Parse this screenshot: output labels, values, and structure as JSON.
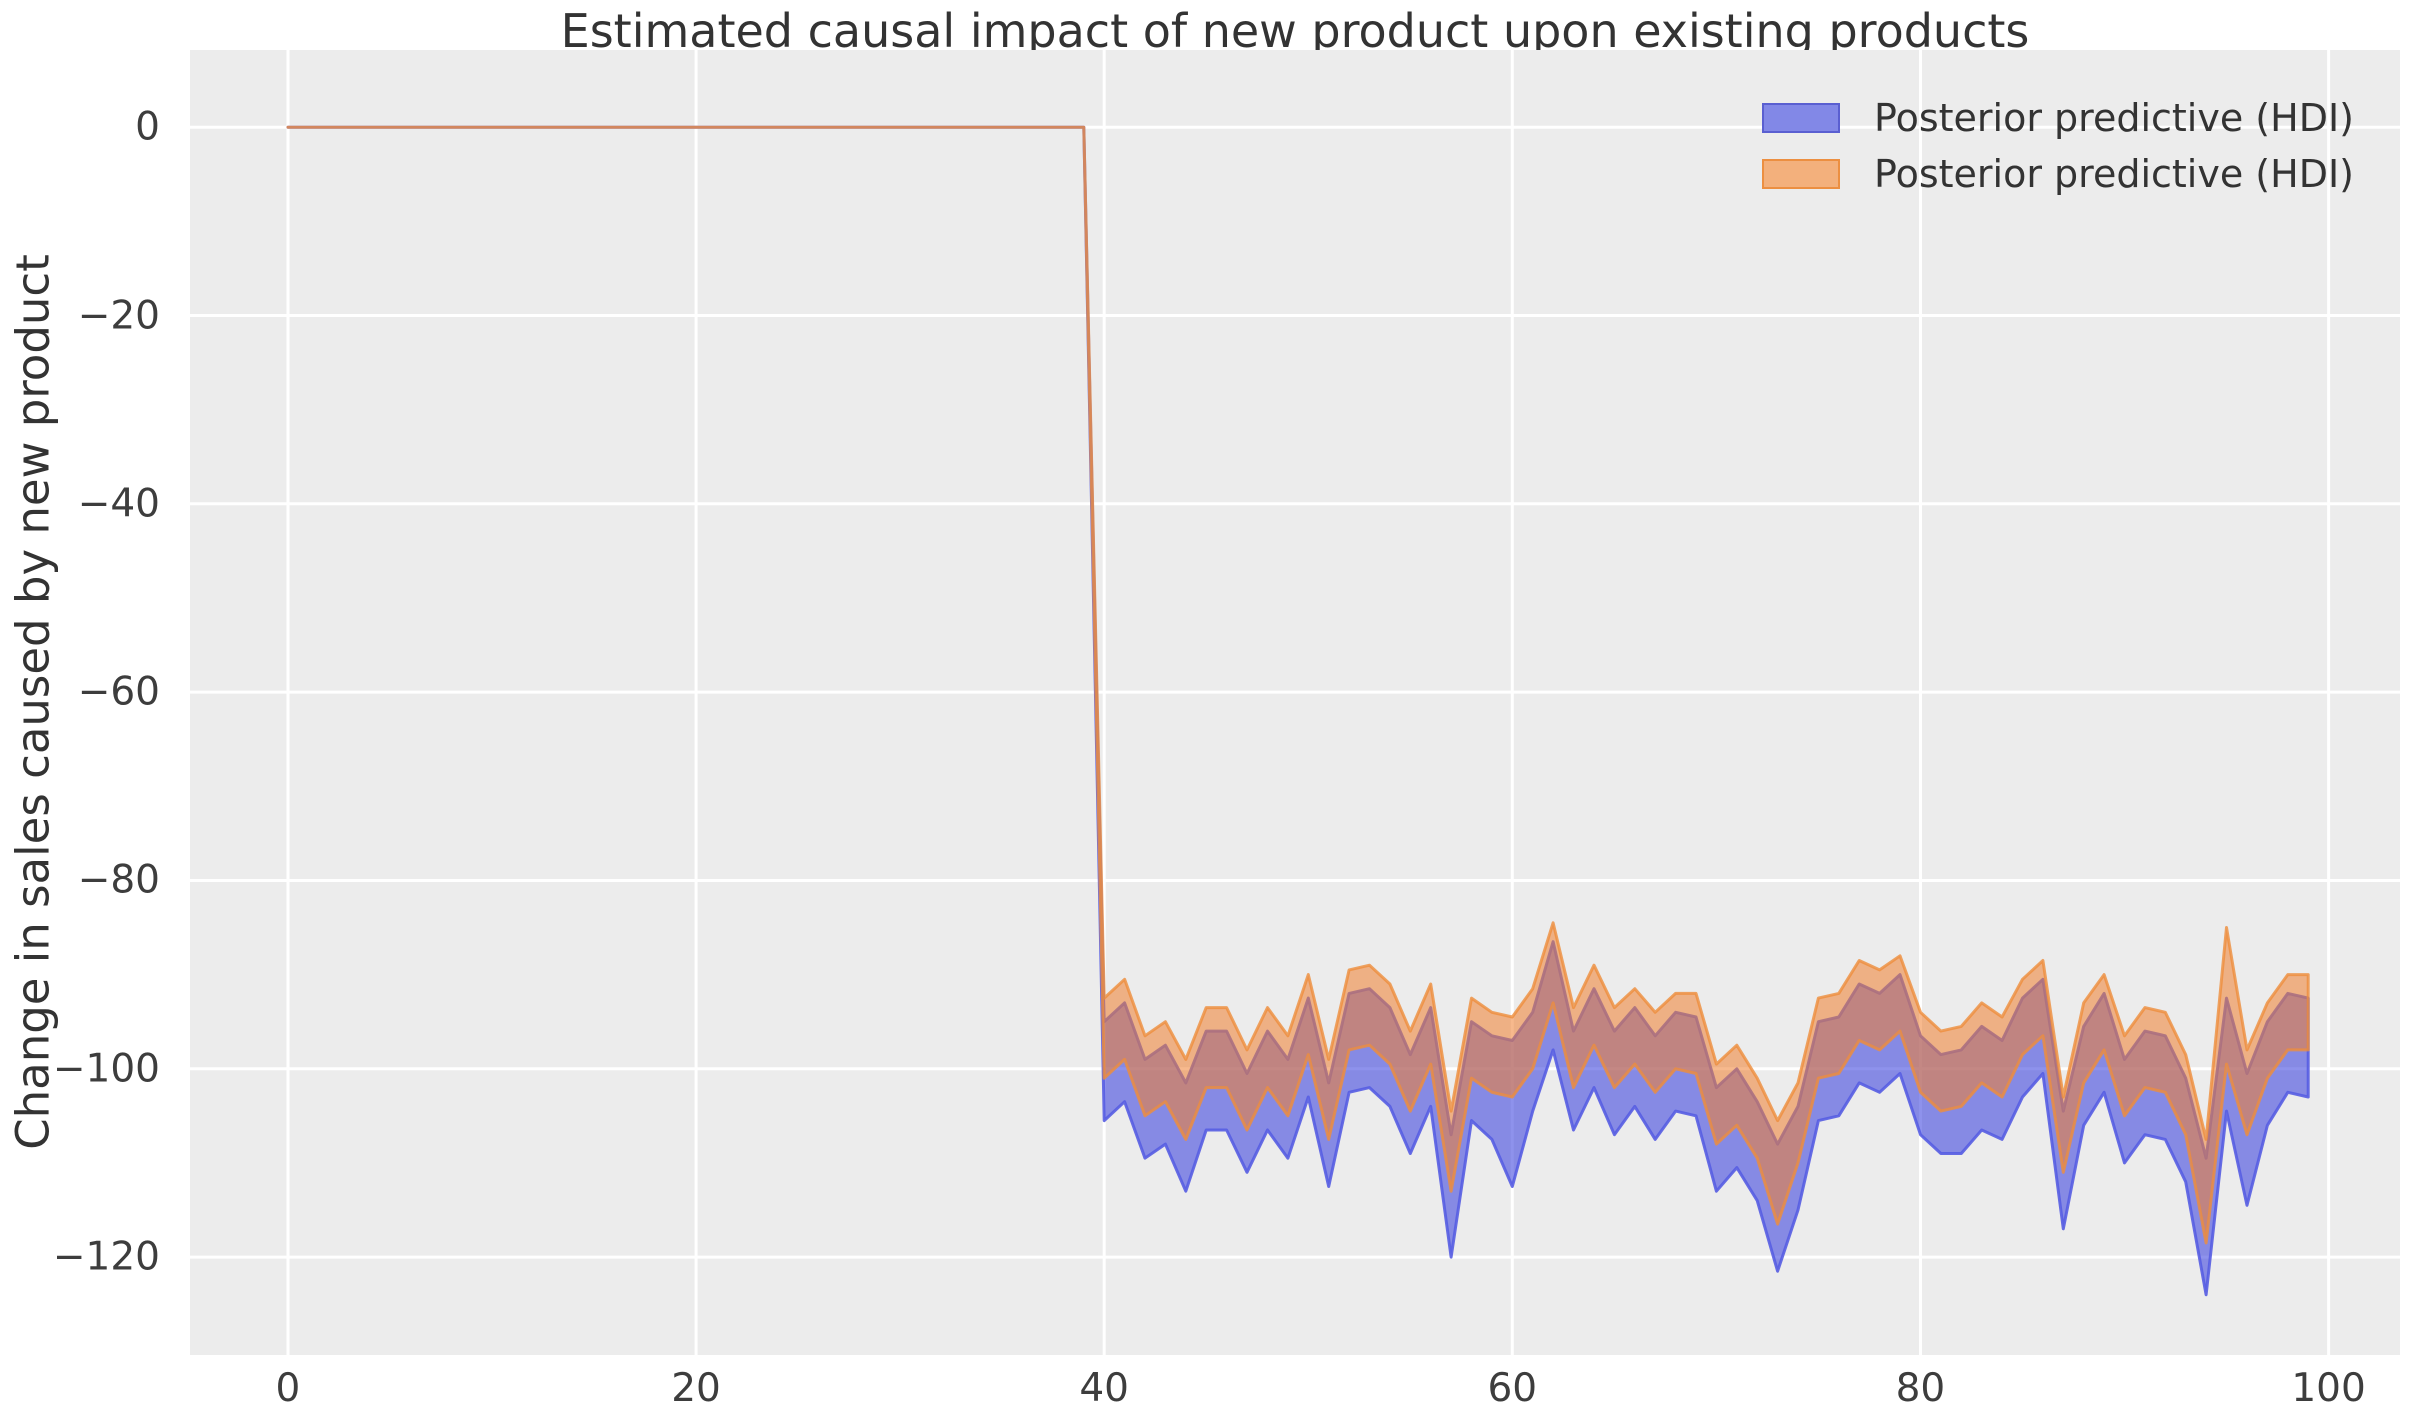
{
  "title": "Estimated causal impact of new product upon existing products",
  "ylabel": "Change in sales caused by new product",
  "legend": {
    "items": [
      {
        "label": "Posterior predictive (HDI)",
        "series": "blue"
      },
      {
        "label": "Posterior predictive (HDI)",
        "series": "orange"
      }
    ]
  },
  "colors": {
    "figure_bg": "#ffffff",
    "plot_bg": "#ececec",
    "grid": "#ffffff",
    "title_text": "#333333",
    "tick_text": "#3d3d3d",
    "blue": {
      "fill": "#4349e0",
      "fill_opacity": 0.6,
      "edge": "#575de2",
      "edge_opacity": 0.9,
      "legend_fill": "#8288e7",
      "legend_edge": "#5a5fd1"
    },
    "orange": {
      "fill": "#f08030",
      "fill_opacity": 0.55,
      "edge": "#ee8d3c",
      "edge_opacity": 0.8,
      "legend_fill": "#f3b07c",
      "legend_edge": "#ec8f41"
    }
  },
  "chart_data": {
    "type": "area",
    "title": "Estimated causal impact of new product upon existing products",
    "xlabel": "",
    "ylabel": "Change in sales caused by new product",
    "xlim": [
      -4.8,
      103.5
    ],
    "ylim": [
      -130.4,
      8.2
    ],
    "grid": true,
    "legend_position": "upper right",
    "x_ticks": [
      {
        "v": 0,
        "label": "0"
      },
      {
        "v": 20,
        "label": "20"
      },
      {
        "v": 40,
        "label": "40"
      },
      {
        "v": 60,
        "label": "60"
      },
      {
        "v": 80,
        "label": "80"
      },
      {
        "v": 100,
        "label": "100"
      }
    ],
    "y_ticks": [
      {
        "v": 0,
        "label": "0"
      },
      {
        "v": -20,
        "label": "−20"
      },
      {
        "v": -40,
        "label": "−40"
      },
      {
        "v": -60,
        "label": "−60"
      },
      {
        "v": -80,
        "label": "−80"
      },
      {
        "v": -100,
        "label": "−100"
      },
      {
        "v": -120,
        "label": "−120"
      }
    ],
    "pre_period": {
      "x_start": 0,
      "x_end": 39,
      "impact_value": 0
    },
    "intervention_x": 40,
    "series": [
      {
        "name": "Posterior predictive (HDI)",
        "color_key": "blue",
        "x_start": 40,
        "x_step": 1,
        "upper": [
          -95,
          -93,
          -99,
          -97.5,
          -101.5,
          -96,
          -96,
          -100.5,
          -96,
          -99,
          -92.5,
          -101.5,
          -92,
          -91.5,
          -93.5,
          -98.5,
          -93.5,
          -107,
          -95,
          -96.5,
          -97,
          -94,
          -86.5,
          -96,
          -91.5,
          -96,
          -93.5,
          -96.5,
          -94,
          -94.5,
          -102,
          -100,
          -103.5,
          -108,
          -104,
          -95,
          -94.5,
          -91,
          -92,
          -90,
          -96.5,
          -98.5,
          -98,
          -95.5,
          -97,
          -92.5,
          -90.5,
          -104.5,
          -95.5,
          -92,
          -99,
          -96,
          -96.5,
          -101,
          -109.5,
          -92.5,
          -100.5,
          -95,
          -92,
          -92.5
        ],
        "lower": [
          -105.5,
          -103.5,
          -109.5,
          -108,
          -113,
          -106.5,
          -106.5,
          -111,
          -106.5,
          -109.5,
          -103,
          -112.5,
          -102.5,
          -102,
          -104,
          -109,
          -104,
          -120,
          -105.5,
          -107.5,
          -112.5,
          -104.5,
          -98,
          -106.5,
          -102,
          -107,
          -104,
          -107.5,
          -104.5,
          -105,
          -113,
          -110.5,
          -114,
          -121.5,
          -115,
          -105.5,
          -105,
          -101.5,
          -102.5,
          -100.5,
          -107,
          -109,
          -109,
          -106.5,
          -107.5,
          -103,
          -100.5,
          -117,
          -106,
          -102.5,
          -110,
          -107,
          -107.5,
          -112,
          -124,
          -104.5,
          -114.5,
          -106,
          -102.5,
          -103
        ]
      },
      {
        "name": "Posterior predictive (HDI)",
        "color_key": "orange",
        "x_start": 40,
        "x_step": 1,
        "upper": [
          -92.5,
          -90.5,
          -96.5,
          -95,
          -99,
          -93.5,
          -93.5,
          -98,
          -93.5,
          -96.5,
          -90,
          -99,
          -89.5,
          -89,
          -91,
          -96,
          -91,
          -104.5,
          -92.5,
          -94,
          -94.5,
          -91.5,
          -84.5,
          -93.5,
          -89,
          -93.5,
          -91.5,
          -94,
          -92,
          -92,
          -99.5,
          -97.5,
          -101,
          -105.5,
          -101.5,
          -92.5,
          -92,
          -88.5,
          -89.5,
          -88,
          -94,
          -96,
          -95.5,
          -93,
          -94.5,
          -90.5,
          -88.5,
          -103,
          -93,
          -90,
          -96.5,
          -93.5,
          -94,
          -98.5,
          -107.5,
          -85,
          -98,
          -93,
          -90,
          -90
        ],
        "lower": [
          -101,
          -99,
          -105,
          -103.5,
          -107.5,
          -102,
          -102,
          -106.5,
          -102,
          -105,
          -98.5,
          -107.5,
          -98,
          -97.5,
          -99.5,
          -104.5,
          -99.5,
          -113,
          -101,
          -102.5,
          -103,
          -100,
          -93,
          -102,
          -97.5,
          -102,
          -99.5,
          -102.5,
          -100,
          -100.5,
          -108,
          -106,
          -109.5,
          -116.5,
          -110,
          -101,
          -100.5,
          -97,
          -98,
          -96,
          -102.5,
          -104.5,
          -104,
          -101.5,
          -103,
          -98.5,
          -96.5,
          -111,
          -101.5,
          -98,
          -105,
          -102,
          -102.5,
          -107,
          -118.5,
          -99.5,
          -107,
          -101,
          -98,
          -98
        ]
      }
    ]
  }
}
